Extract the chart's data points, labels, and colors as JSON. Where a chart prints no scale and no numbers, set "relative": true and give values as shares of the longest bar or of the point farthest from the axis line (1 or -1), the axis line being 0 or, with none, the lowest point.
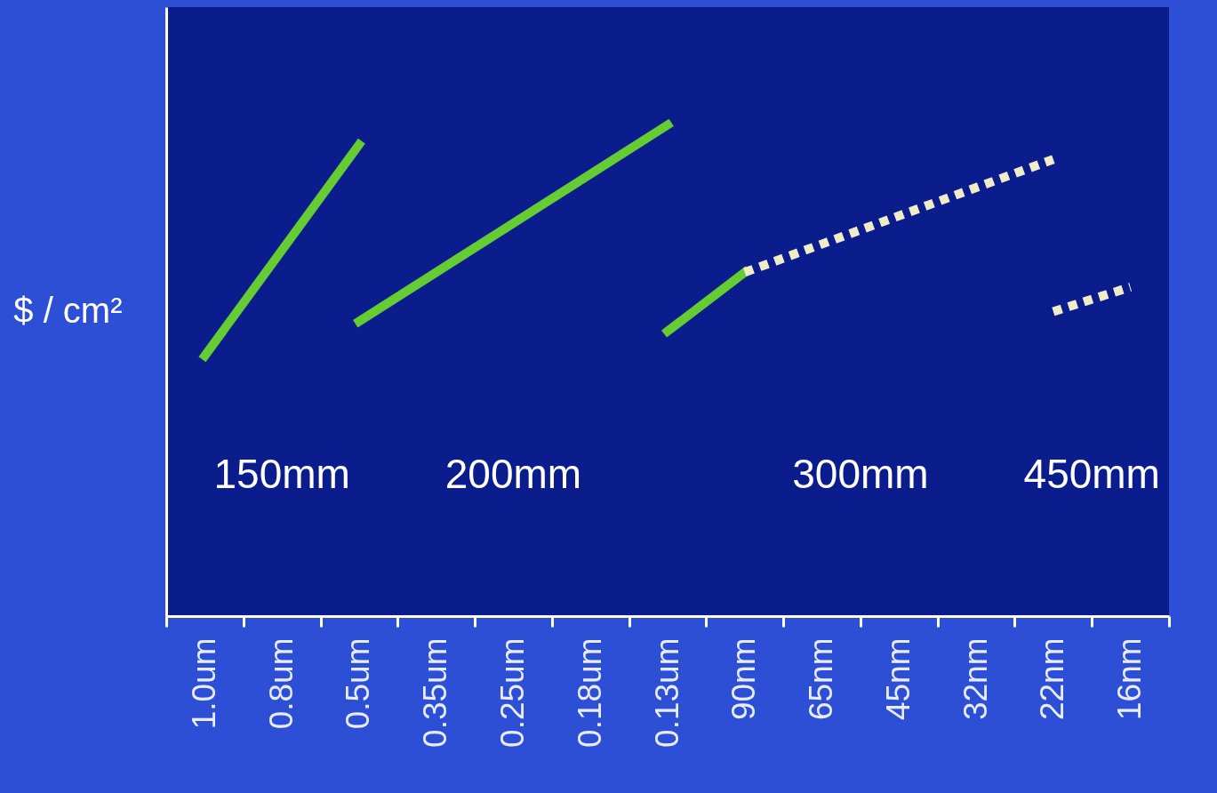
{
  "chart_data": {
    "type": "line",
    "relative": true,
    "ylabel": "$ / cm²",
    "tick_labels": "x",
    "annotations": [
      "150mm",
      "200mm",
      "300mm",
      "450mm"
    ],
    "categories": [
      "1.0um",
      "0.8um",
      "0.5um",
      "0.35um",
      "0.25um",
      "0.18um",
      "0.13um",
      "90nm",
      "65nm",
      "45nm",
      "32nm",
      "22nm",
      "16nm"
    ],
    "series": [
      {
        "color": "#66cc33",
        "line_style": "solid",
        "x": [
          "1.0um",
          "0.5um"
        ],
        "values": [
          0.53,
          0.96
        ]
      },
      {
        "color": "#66cc33",
        "line_style": "solid",
        "x": [
          "0.5um",
          "0.13um"
        ],
        "values": [
          0.6,
          1
        ]
      },
      {
        "color": "#66cc33",
        "line_style": "solid",
        "x": [
          "0.13um",
          "90nm"
        ],
        "values": [
          0.58,
          0.7
        ]
      },
      {
        "color": "#f0ecc8",
        "line_style": "dotted",
        "x": [
          "90nm",
          "22nm"
        ],
        "values": [
          0.7,
          0.93
        ]
      },
      {
        "color": "#f0ecc8",
        "line_style": "dotted",
        "x": [
          "22nm",
          "16nm"
        ],
        "values": [
          0.62,
          0.67
        ]
      }
    ]
  }
}
